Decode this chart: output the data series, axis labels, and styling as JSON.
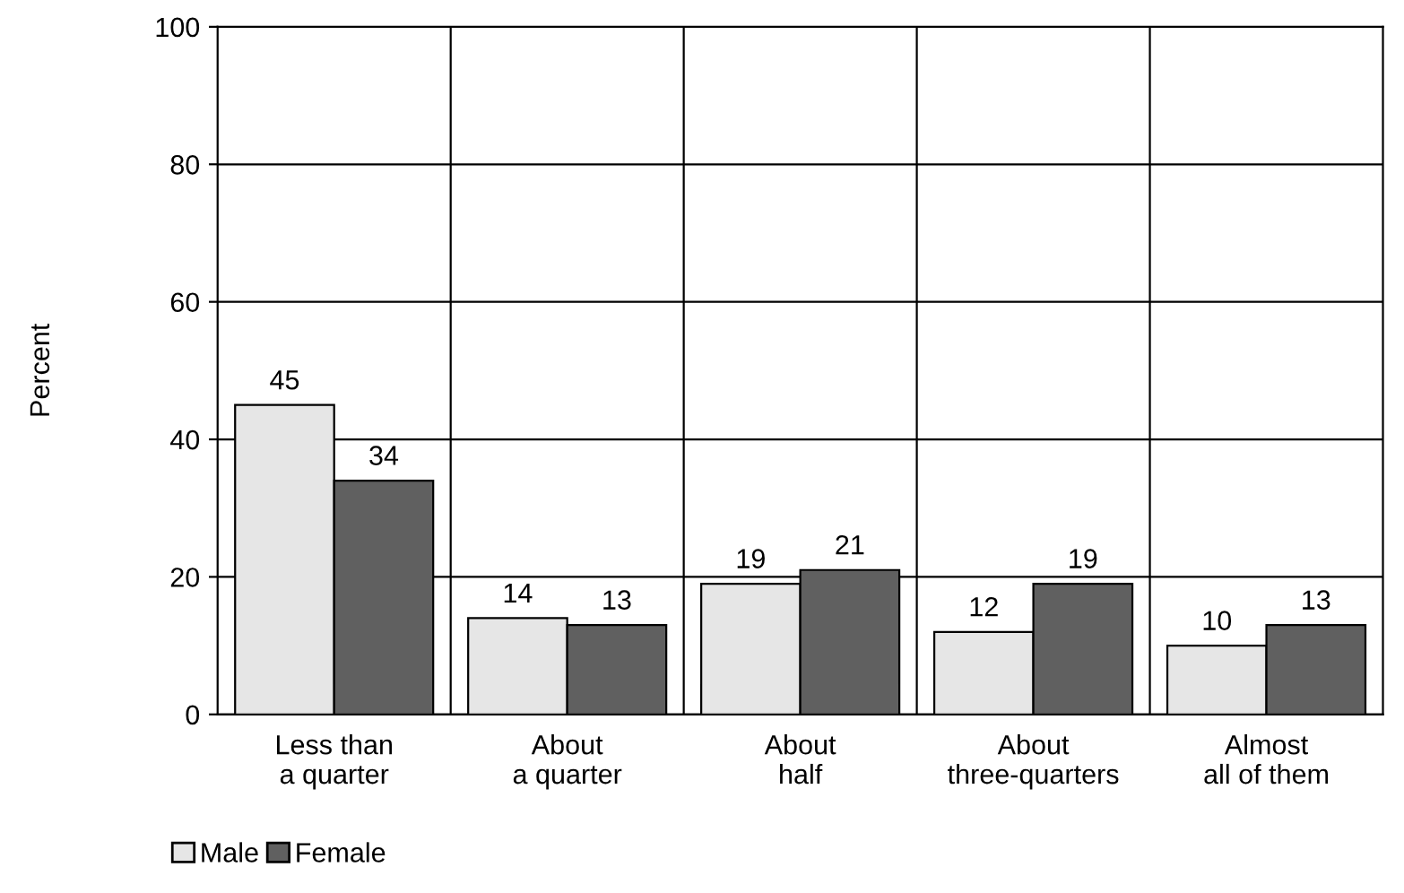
{
  "chart_data": {
    "type": "bar",
    "ylabel": "Percent",
    "categories": [
      "Less than\na quarter",
      "About\na quarter",
      "About\nhalf",
      "About\nthree-quarters",
      "Almost\nall of them"
    ],
    "series": [
      {
        "name": "Male",
        "color": "#e6e6e6",
        "values": [
          45,
          14,
          19,
          12,
          10
        ]
      },
      {
        "name": "Female",
        "color": "#606060",
        "values": [
          34,
          13,
          21,
          19,
          13
        ]
      }
    ],
    "ylim": [
      0,
      100
    ],
    "yticks": [
      0,
      20,
      40,
      60,
      80,
      100
    ],
    "grid": true,
    "legend": "bottom left",
    "data_labels": true
  }
}
